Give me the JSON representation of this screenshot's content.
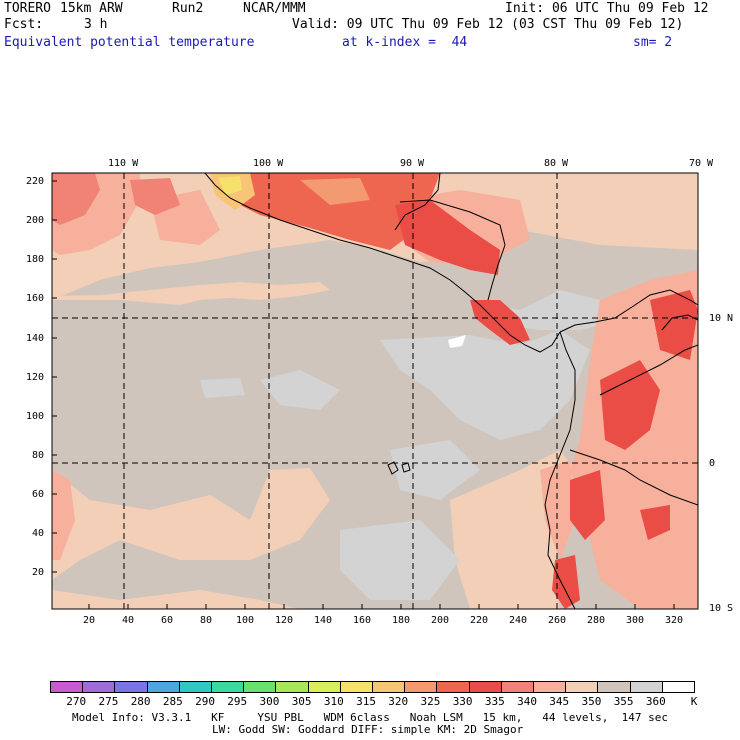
{
  "header": {
    "model": "TORERO",
    "resolution": "15km ARW",
    "run": "Run2",
    "org": "NCAR/MMM",
    "init": "Init: 06 UTC Thu 09 Feb 12",
    "fcst_label": "Fcst:",
    "fcst_value": "3 h",
    "valid": "Valid: 09 UTC Thu 09 Feb 12 (03 CST Thu 09 Feb 12)",
    "field": "Equivalent potential temperature",
    "level": "at k-index =  44",
    "smooth": "sm= 2"
  },
  "map": {
    "top_lon_labels": [
      "110 W",
      "100 W",
      "90 W",
      "80 W",
      "70 W"
    ],
    "right_lat_labels": [
      "10 N",
      "0",
      "10 S"
    ],
    "left_y_ticks": [
      "220",
      "200",
      "180",
      "160",
      "140",
      "120",
      "100",
      "80",
      "60",
      "40",
      "20"
    ],
    "bottom_x_ticks": [
      "20",
      "40",
      "60",
      "80",
      "100",
      "120",
      "140",
      "160",
      "180",
      "200",
      "220",
      "240",
      "260",
      "280",
      "300",
      "320"
    ]
  },
  "colorbar": {
    "colors": [
      "#c85ad2",
      "#9e6ed6",
      "#7a74e6",
      "#4fa6dc",
      "#2ec8c8",
      "#3ad9a0",
      "#6ae070",
      "#a8e65a",
      "#d8ee5a",
      "#f6e26a",
      "#f8c476",
      "#f49a70",
      "#ee6650",
      "#ea4c46",
      "#f08276",
      "#f6b09c",
      "#f2cfb6",
      "#cfc5bd",
      "#d3d3d3",
      "#ffffff"
    ],
    "labels": [
      "270",
      "275",
      "280",
      "285",
      "290",
      "295",
      "300",
      "305",
      "310",
      "315",
      "320",
      "325",
      "330",
      "335",
      "340",
      "345",
      "350",
      "355",
      "360",
      "K"
    ]
  },
  "footer": {
    "line1": "Model Info: V3.3.1   KF     YSU PBL   WDM 6class   Noah LSM   15 km,   44 levels,  147 sec",
    "line2": "LW: Godd SW: Goddard DIFF: simple KM: 2D Smagor"
  }
}
